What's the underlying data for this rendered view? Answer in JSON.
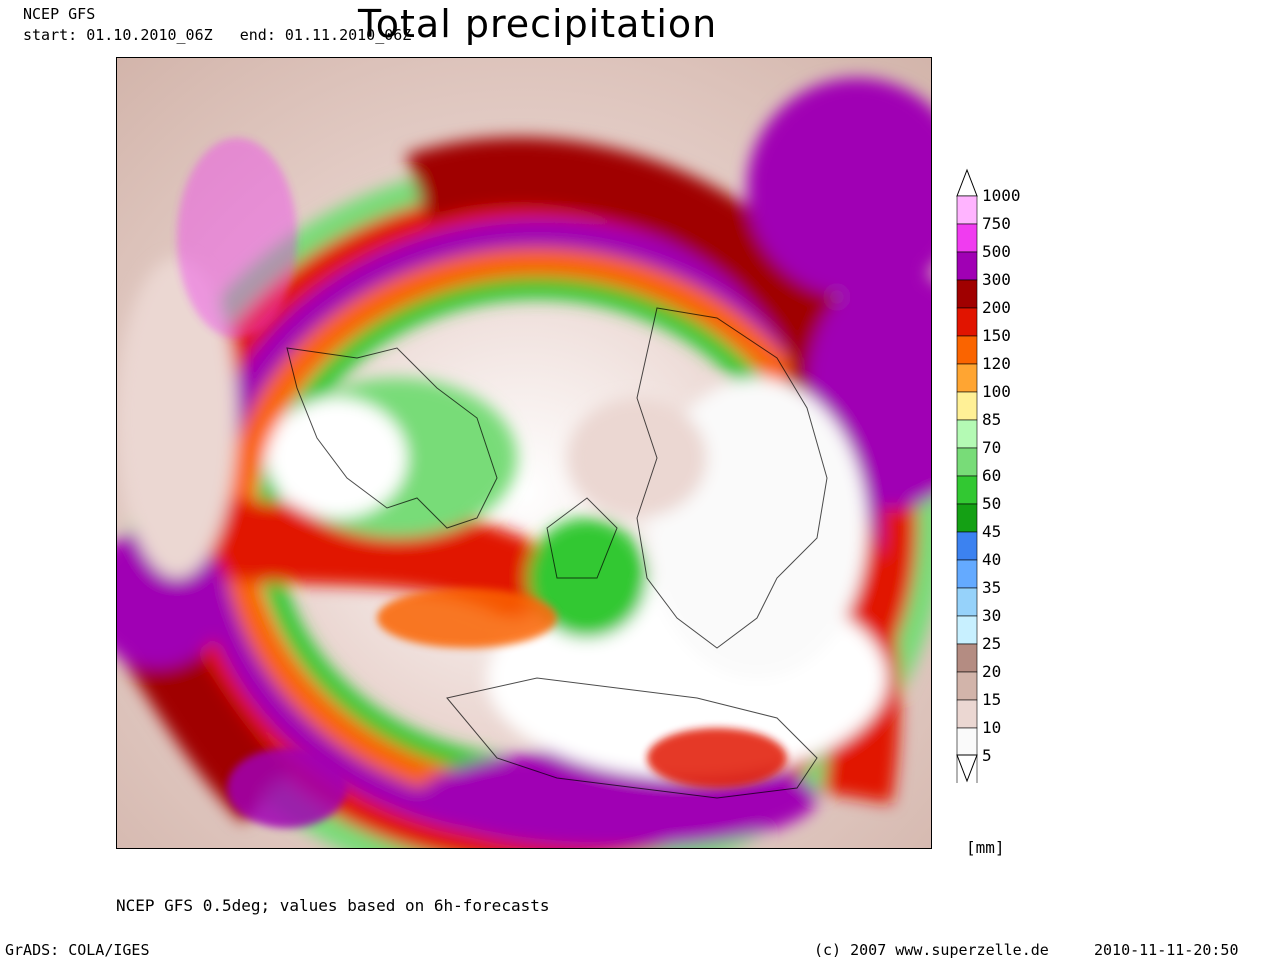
{
  "header": {
    "model": "NCEP GFS",
    "period": "start: 01.10.2010_06Z   end: 01.11.2010_06Z",
    "title": "Total precipitation"
  },
  "legend": {
    "levels": [
      "1000",
      "750",
      "500",
      "300",
      "200",
      "150",
      "120",
      "100",
      "85",
      "70",
      "60",
      "50",
      "45",
      "40",
      "35",
      "30",
      "25",
      "20",
      "15",
      "10",
      "5"
    ],
    "colors": [
      "#ffb4ff",
      "#f03cf0",
      "#a000b4",
      "#a00000",
      "#e11400",
      "#fa6400",
      "#ffa532",
      "#fff096",
      "#b4fab4",
      "#78dc78",
      "#32c832",
      "#14a014",
      "#3c82f0",
      "#64aaff",
      "#96d2fa",
      "#c8f0ff",
      "#b48c82",
      "#d2b4aa",
      "#ebd7d2",
      "#fafafa",
      "#ffffff"
    ],
    "unit": "[mm]"
  },
  "footer": {
    "note": "NCEP GFS 0.5deg; values based on 6h-forecasts",
    "software": "GrADS: COLA/IGES",
    "copyright": "(c) 2007 www.superzelle.de",
    "timestamp": "2010-11-11-20:50"
  }
}
